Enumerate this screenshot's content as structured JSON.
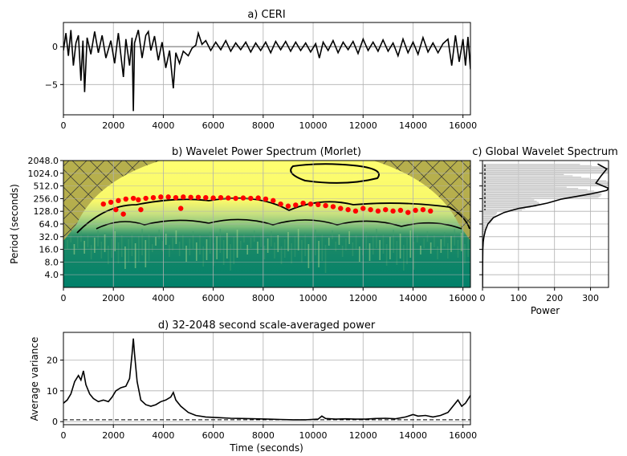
{
  "chart_data": [
    {
      "type": "line",
      "title": "a) CERI",
      "xlabel": "",
      "ylabel": "",
      "xlim": [
        0,
        16300
      ],
      "ylim": [
        -9,
        3.2
      ],
      "xticks": [
        0,
        2000,
        4000,
        6000,
        8000,
        10000,
        12000,
        14000,
        16000
      ],
      "yticks": [
        -5,
        0
      ],
      "ytick_labels": [
        "−5",
        "0"
      ],
      "grid": true,
      "reference_line": 0,
      "series": [
        {
          "values": [
            [
              0,
              -0.5
            ],
            [
              100,
              1.8
            ],
            [
              200,
              -1.2
            ],
            [
              300,
              2.2
            ],
            [
              400,
              -2.5
            ],
            [
              500,
              0.5
            ],
            [
              600,
              1.5
            ],
            [
              700,
              -4.5
            ],
            [
              780,
              0.8
            ],
            [
              850,
              -6.0
            ],
            [
              950,
              1.2
            ],
            [
              1100,
              -1.0
            ],
            [
              1250,
              2.0
            ],
            [
              1400,
              -0.8
            ],
            [
              1550,
              1.5
            ],
            [
              1700,
              -1.5
            ],
            [
              1900,
              0.8
            ],
            [
              2050,
              -2.2
            ],
            [
              2200,
              1.8
            ],
            [
              2400,
              -4.0
            ],
            [
              2500,
              1.0
            ],
            [
              2650,
              -2.5
            ],
            [
              2750,
              1.2
            ],
            [
              2800,
              -8.5
            ],
            [
              2850,
              0.5
            ],
            [
              3000,
              2.2
            ],
            [
              3150,
              -1.5
            ],
            [
              3300,
              1.5
            ],
            [
              3400,
              2.0
            ],
            [
              3500,
              -0.5
            ],
            [
              3650,
              1.4
            ],
            [
              3800,
              -1.8
            ],
            [
              3950,
              0.6
            ],
            [
              4100,
              -2.8
            ],
            [
              4250,
              -0.5
            ],
            [
              4400,
              -5.5
            ],
            [
              4500,
              -0.8
            ],
            [
              4650,
              -2.2
            ],
            [
              4800,
              -0.6
            ],
            [
              5000,
              -1.2
            ],
            [
              5150,
              -0.2
            ],
            [
              5300,
              0.2
            ],
            [
              5400,
              1.8
            ],
            [
              5550,
              0.3
            ],
            [
              5700,
              0.8
            ],
            [
              5900,
              -0.5
            ],
            [
              6100,
              0.6
            ],
            [
              6300,
              -0.4
            ],
            [
              6500,
              0.8
            ],
            [
              6700,
              -0.6
            ],
            [
              6900,
              0.5
            ],
            [
              7100,
              -0.4
            ],
            [
              7300,
              0.6
            ],
            [
              7500,
              -0.7
            ],
            [
              7700,
              0.5
            ],
            [
              7900,
              -0.5
            ],
            [
              8100,
              0.6
            ],
            [
              8300,
              -0.8
            ],
            [
              8500,
              0.7
            ],
            [
              8700,
              -0.4
            ],
            [
              8900,
              0.7
            ],
            [
              9100,
              -0.6
            ],
            [
              9300,
              0.6
            ],
            [
              9500,
              -0.5
            ],
            [
              9700,
              0.5
            ],
            [
              9900,
              -0.7
            ],
            [
              10100,
              0.4
            ],
            [
              10250,
              -1.5
            ],
            [
              10400,
              0.6
            ],
            [
              10600,
              -0.5
            ],
            [
              10800,
              0.8
            ],
            [
              11000,
              -0.8
            ],
            [
              11200,
              0.6
            ],
            [
              11400,
              -0.4
            ],
            [
              11600,
              0.7
            ],
            [
              11800,
              -0.9
            ],
            [
              12000,
              1.0
            ],
            [
              12200,
              -0.5
            ],
            [
              12400,
              0.6
            ],
            [
              12600,
              -0.6
            ],
            [
              12800,
              0.9
            ],
            [
              13000,
              -0.6
            ],
            [
              13200,
              0.5
            ],
            [
              13400,
              -1.2
            ],
            [
              13600,
              1.0
            ],
            [
              13800,
              -0.8
            ],
            [
              14000,
              0.6
            ],
            [
              14200,
              -1.0
            ],
            [
              14400,
              1.2
            ],
            [
              14600,
              -0.7
            ],
            [
              14800,
              0.5
            ],
            [
              15000,
              -0.8
            ],
            [
              15200,
              0.4
            ],
            [
              15400,
              1.0
            ],
            [
              15550,
              -2.5
            ],
            [
              15700,
              1.5
            ],
            [
              15850,
              -2.0
            ],
            [
              16000,
              1.0
            ],
            [
              16100,
              -2.5
            ],
            [
              16200,
              1.3
            ],
            [
              16300,
              -3.0
            ]
          ]
        }
      ]
    },
    {
      "type": "heatmap",
      "title": "b)  Wavelet Power Spectrum (Morlet)",
      "xlabel": "",
      "ylabel": "Period (seconds)",
      "xlim": [
        0,
        16300
      ],
      "yscale": "log2",
      "ylim": [
        2,
        2048
      ],
      "xticks": [
        0,
        2000,
        4000,
        6000,
        8000,
        10000,
        12000,
        14000,
        16000
      ],
      "yticks": [
        4,
        8,
        16,
        32,
        64,
        128,
        256,
        512,
        1024,
        2048
      ],
      "ytick_labels": [
        "4.0",
        "8.0",
        "16.0",
        "32.0",
        "64.0",
        "128.0",
        "256.0",
        "512.0",
        "1024.0",
        "2048.0"
      ],
      "grid": true,
      "colors": {
        "low": "#00806a",
        "mid": "#7fc07f",
        "high": "#ffff66",
        "coi": "#b0a84a"
      },
      "ridge_points": [
        [
          1600,
          190
        ],
        [
          1900,
          210
        ],
        [
          2200,
          230
        ],
        [
          2500,
          250
        ],
        [
          2800,
          260
        ],
        [
          3000,
          240
        ],
        [
          3300,
          260
        ],
        [
          3600,
          270
        ],
        [
          3900,
          280
        ],
        [
          4200,
          280
        ],
        [
          4500,
          270
        ],
        [
          4800,
          280
        ],
        [
          5100,
          275
        ],
        [
          5400,
          275
        ],
        [
          5700,
          270
        ],
        [
          6000,
          265
        ],
        [
          6300,
          270
        ],
        [
          6600,
          265
        ],
        [
          6900,
          260
        ],
        [
          7200,
          265
        ],
        [
          7500,
          260
        ],
        [
          7800,
          265
        ],
        [
          8100,
          250
        ],
        [
          8400,
          230
        ],
        [
          8700,
          190
        ],
        [
          9000,
          170
        ],
        [
          9300,
          180
        ],
        [
          9600,
          200
        ],
        [
          9900,
          190
        ],
        [
          10200,
          185
        ],
        [
          10500,
          175
        ],
        [
          10800,
          165
        ],
        [
          11100,
          150
        ],
        [
          11400,
          140
        ],
        [
          11700,
          130
        ],
        [
          12000,
          150
        ],
        [
          12300,
          140
        ],
        [
          12600,
          130
        ],
        [
          12900,
          140
        ],
        [
          13200,
          130
        ],
        [
          13500,
          135
        ],
        [
          13800,
          120
        ],
        [
          14100,
          135
        ],
        [
          14400,
          140
        ],
        [
          14700,
          130
        ],
        [
          2400,
          110
        ],
        [
          2100,
          140
        ],
        [
          3100,
          140
        ],
        [
          4700,
          150
        ]
      ]
    },
    {
      "type": "line",
      "title": "c) Global Wavelet Spectrum",
      "xlabel": "Power",
      "ylabel": "",
      "xlim": [
        0,
        350
      ],
      "xticks": [
        0,
        100,
        200,
        300
      ],
      "yscale": "log2",
      "ylim": [
        2,
        2048
      ],
      "grid": true,
      "series": [
        {
          "values": [
            [
              0,
              2
            ],
            [
              0.5,
              8
            ],
            [
              1,
              16
            ],
            [
              2,
              24
            ],
            [
              4,
              32
            ],
            [
              8,
              45
            ],
            [
              15,
              64
            ],
            [
              30,
              90
            ],
            [
              60,
              120
            ],
            [
              100,
              150
            ],
            [
              140,
              170
            ],
            [
              180,
              200
            ],
            [
              220,
              250
            ],
            [
              300,
              330
            ],
            [
              345,
              400
            ],
            [
              350,
              450
            ],
            [
              315,
              600
            ],
            [
              330,
              900
            ],
            [
              345,
              1300
            ],
            [
              320,
              1700
            ]
          ]
        }
      ]
    },
    {
      "type": "line",
      "title": "d) 32-2048 second scale-averaged power",
      "xlabel": "Time (seconds)",
      "ylabel": "Average variance",
      "xlim": [
        0,
        16300
      ],
      "ylim": [
        -1,
        29
      ],
      "xticks": [
        0,
        2000,
        4000,
        6000,
        8000,
        10000,
        12000,
        14000,
        16000
      ],
      "yticks": [
        0,
        10,
        20
      ],
      "grid": true,
      "reference_line": 0.6,
      "series": [
        {
          "values": [
            [
              0,
              6
            ],
            [
              150,
              7
            ],
            [
              300,
              9
            ],
            [
              450,
              13
            ],
            [
              600,
              15
            ],
            [
              700,
              13.5
            ],
            [
              800,
              16.5
            ],
            [
              900,
              12
            ],
            [
              1050,
              9
            ],
            [
              1200,
              7.5
            ],
            [
              1400,
              6.5
            ],
            [
              1600,
              7
            ],
            [
              1800,
              6.5
            ],
            [
              1950,
              8
            ],
            [
              2100,
              10
            ],
            [
              2300,
              11
            ],
            [
              2500,
              11.5
            ],
            [
              2650,
              14
            ],
            [
              2750,
              22
            ],
            [
              2800,
              27
            ],
            [
              2850,
              22
            ],
            [
              2950,
              13
            ],
            [
              3100,
              7
            ],
            [
              3300,
              5.5
            ],
            [
              3500,
              5
            ],
            [
              3700,
              5.5
            ],
            [
              3900,
              6.5
            ],
            [
              4100,
              7
            ],
            [
              4300,
              8
            ],
            [
              4400,
              9.5
            ],
            [
              4500,
              7
            ],
            [
              4700,
              5
            ],
            [
              5000,
              3
            ],
            [
              5300,
              2
            ],
            [
              5700,
              1.5
            ],
            [
              6200,
              1.3
            ],
            [
              6700,
              1.1
            ],
            [
              7200,
              1
            ],
            [
              7700,
              0.9
            ],
            [
              8200,
              0.8
            ],
            [
              8700,
              0.7
            ],
            [
              9200,
              0.6
            ],
            [
              9700,
              0.6
            ],
            [
              10200,
              0.8
            ],
            [
              10350,
              1.8
            ],
            [
              10500,
              1
            ],
            [
              10900,
              0.8
            ],
            [
              11300,
              0.9
            ],
            [
              11700,
              0.8
            ],
            [
              12100,
              0.8
            ],
            [
              12500,
              1
            ],
            [
              12900,
              1.1
            ],
            [
              13300,
              0.9
            ],
            [
              13700,
              1.5
            ],
            [
              14000,
              2.3
            ],
            [
              14200,
              1.8
            ],
            [
              14500,
              2
            ],
            [
              14800,
              1.5
            ],
            [
              15100,
              2
            ],
            [
              15400,
              3
            ],
            [
              15600,
              5
            ],
            [
              15800,
              7
            ],
            [
              15950,
              5
            ],
            [
              16100,
              6
            ],
            [
              16300,
              8.5
            ]
          ]
        }
      ]
    }
  ]
}
